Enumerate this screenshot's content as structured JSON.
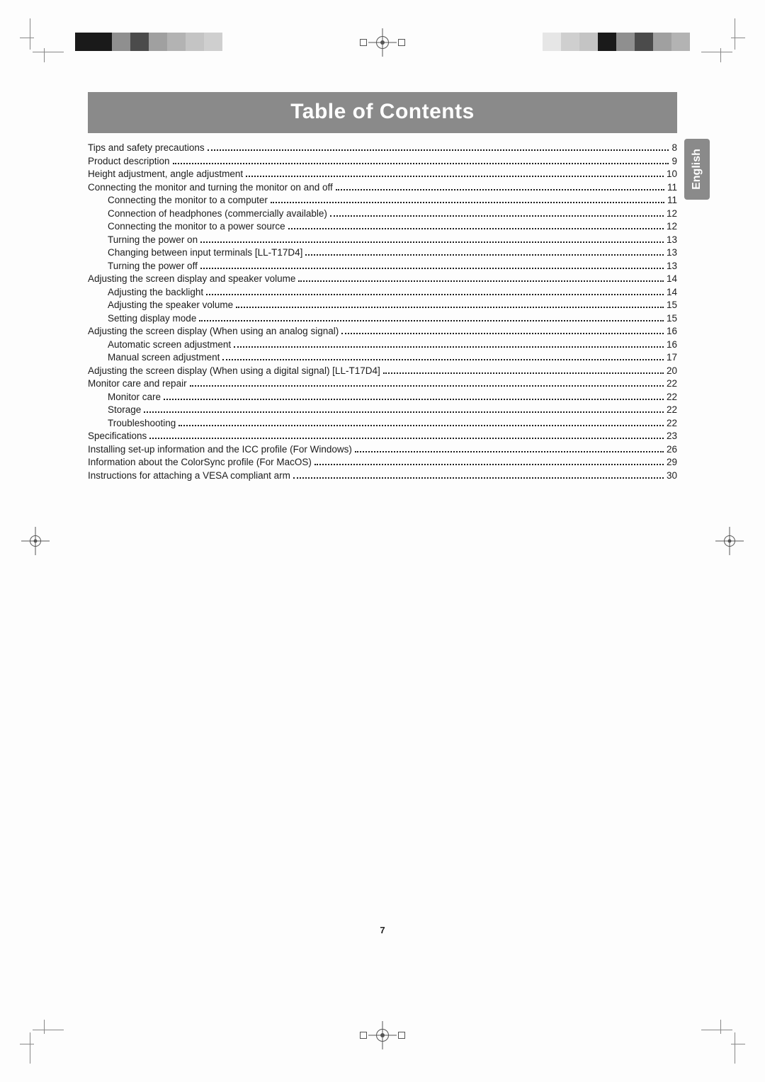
{
  "title": "Table of Contents",
  "language_tab": "English",
  "page_number": "7",
  "colors": {
    "header_bg": "#8a8a8a",
    "header_text": "#ffffff",
    "body_text": "#1c1c1c",
    "page_bg": "#fdfdfd"
  },
  "toc": [
    {
      "level": 0,
      "label": "Tips and safety precautions",
      "page": "8"
    },
    {
      "level": 0,
      "label": "Product description",
      "page": "9"
    },
    {
      "level": 0,
      "label": "Height adjustment, angle adjustment",
      "page": "10"
    },
    {
      "level": 0,
      "label": "Connecting the monitor and turning the monitor on and off",
      "page": "11"
    },
    {
      "level": 1,
      "label": "Connecting the monitor to a computer",
      "page": "11"
    },
    {
      "level": 1,
      "label": "Connection of headphones (commercially available)",
      "page": "12"
    },
    {
      "level": 1,
      "label": "Connecting the monitor to a power source",
      "page": "12"
    },
    {
      "level": 1,
      "label": "Turning the power on",
      "page": "13"
    },
    {
      "level": 1,
      "label": "Changing between input terminals [LL-T17D4]",
      "page": "13"
    },
    {
      "level": 1,
      "label": "Turning the power off",
      "page": "13"
    },
    {
      "level": 0,
      "label": "Adjusting the screen display and speaker volume",
      "page": "14"
    },
    {
      "level": 1,
      "label": "Adjusting the backlight",
      "page": "14"
    },
    {
      "level": 1,
      "label": "Adjusting the speaker volume",
      "page": "15"
    },
    {
      "level": 1,
      "label": "Setting display mode",
      "page": "15"
    },
    {
      "level": 0,
      "label": "Adjusting the screen display (When using an analog signal)",
      "page": "16"
    },
    {
      "level": 1,
      "label": "Automatic screen adjustment",
      "page": "16"
    },
    {
      "level": 1,
      "label": "Manual screen adjustment",
      "page": "17"
    },
    {
      "level": 0,
      "label": "Adjusting the screen display (When using a digital signal) [LL-T17D4]",
      "page": "20"
    },
    {
      "level": 0,
      "label": "Monitor care and repair",
      "page": "22"
    },
    {
      "level": 1,
      "label": "Monitor care",
      "page": "22"
    },
    {
      "level": 1,
      "label": "Storage",
      "page": "22"
    },
    {
      "level": 1,
      "label": "Troubleshooting",
      "page": "22"
    },
    {
      "level": 0,
      "label": "Specifications",
      "page": "23"
    },
    {
      "level": 0,
      "label": "Installing set-up information and the ICC profile (For Windows)",
      "page": "26"
    },
    {
      "level": 0,
      "label": "Information about the ColorSync profile (For MacOS)",
      "page": "29"
    },
    {
      "level": 0,
      "label": "Instructions for attaching a VESA compliant arm",
      "page": "30"
    }
  ]
}
